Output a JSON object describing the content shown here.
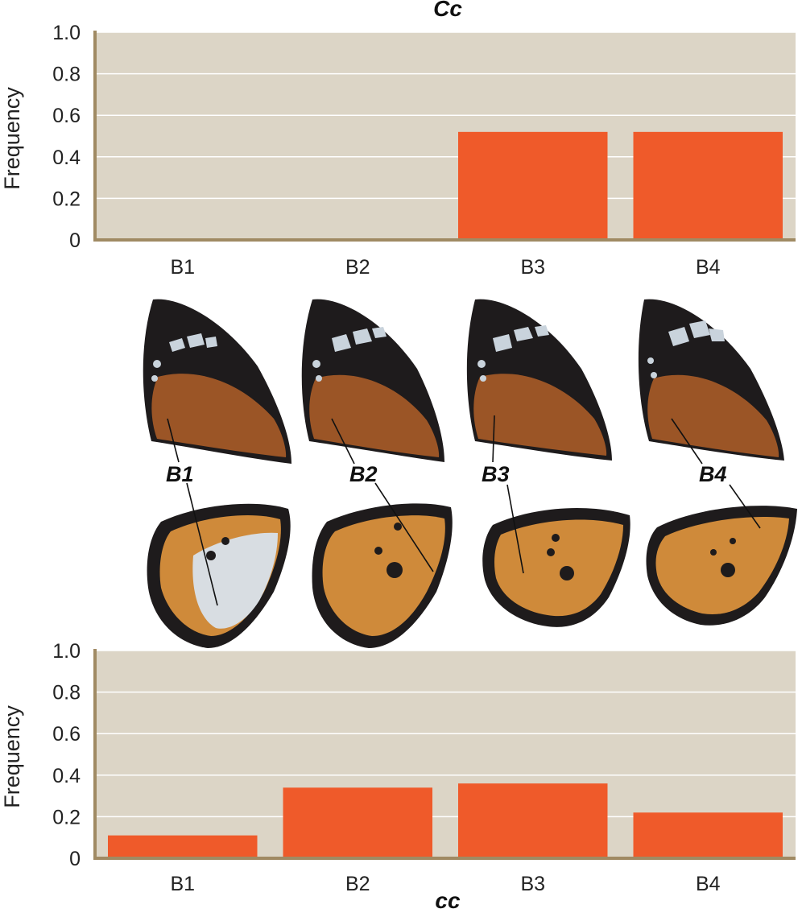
{
  "chart_data": [
    {
      "type": "bar",
      "title": "Cc",
      "xlabel": "",
      "ylabel": "Frequency",
      "categories": [
        "B1",
        "B2",
        "B3",
        "B4"
      ],
      "values": [
        0.0,
        0.0,
        0.52,
        0.52
      ],
      "ylim": [
        0,
        1.0
      ],
      "yticks": [
        "0",
        "0.2",
        "0.4",
        "0.6",
        "0.8",
        "1.0"
      ],
      "grid": true,
      "colors": {
        "bar": "#ef5a2a",
        "plot_bg": "#dcd5c6",
        "axis": "#a08a63",
        "grid": "#ffffff"
      }
    },
    {
      "type": "bar",
      "title": "",
      "xlabel": "cc",
      "ylabel": "Frequency",
      "categories": [
        "B1",
        "B2",
        "B3",
        "B4"
      ],
      "values": [
        0.11,
        0.34,
        0.36,
        0.22
      ],
      "ylim": [
        0,
        1.0
      ],
      "yticks": [
        "0",
        "0.2",
        "0.4",
        "0.6",
        "0.8",
        "1.0"
      ],
      "grid": true,
      "colors": {
        "bar": "#ef5a2a",
        "plot_bg": "#dcd5c6",
        "axis": "#a08a63",
        "grid": "#ffffff"
      }
    }
  ],
  "wing_labels": [
    "B1",
    "B2",
    "B3",
    "B4"
  ],
  "wing_colors": {
    "black": "#1e1b1c",
    "forewing_orange": "#9b5526",
    "hindwing_orange": "#cf8a3a",
    "white_patch": "#d8dde2",
    "spot": "#c9d3dc"
  }
}
